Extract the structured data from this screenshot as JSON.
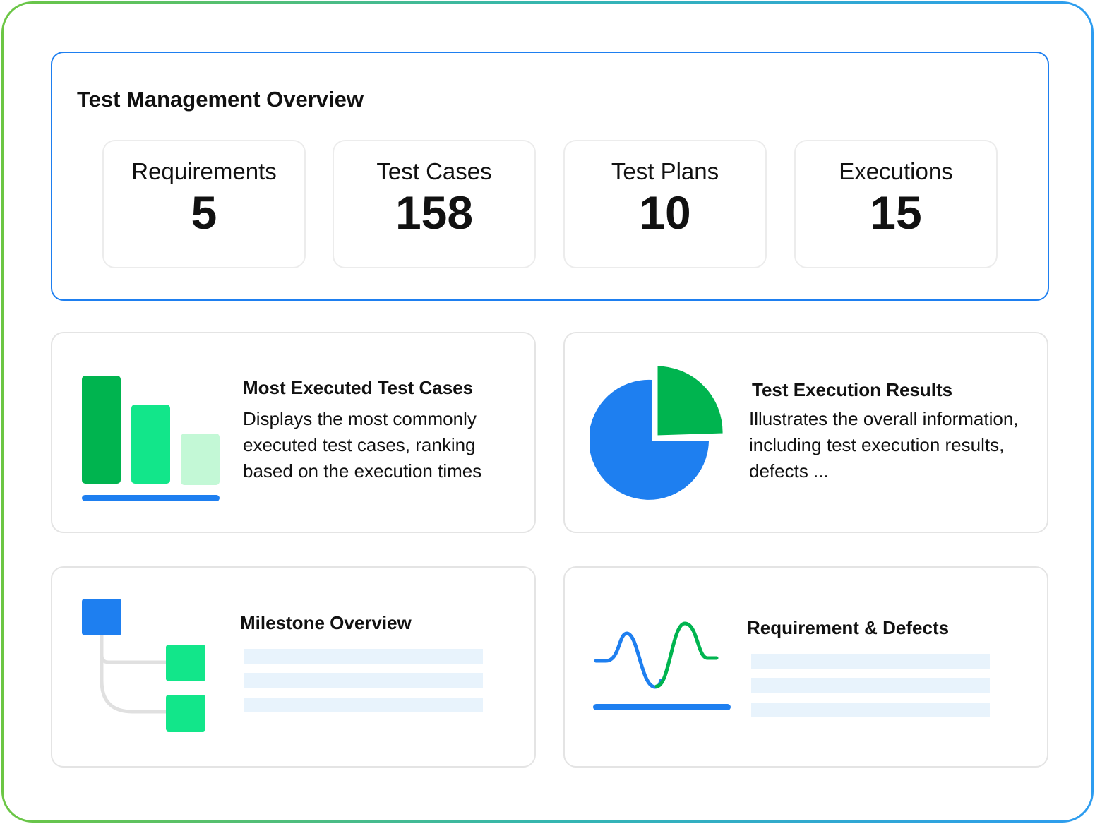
{
  "overview": {
    "title": "Test Management Overview",
    "stats": [
      {
        "label": "Requirements",
        "value": "5"
      },
      {
        "label": "Test Cases",
        "value": "158"
      },
      {
        "label": "Test Plans",
        "value": "10"
      },
      {
        "label": "Executions",
        "value": "15"
      }
    ]
  },
  "cards": {
    "most_executed": {
      "title": "Most Executed Test Cases",
      "description": "Displays the most commonly executed test cases, ranking based on the execution times",
      "icon": "bar-chart-icon"
    },
    "execution_results": {
      "title": "Test Execution Results",
      "description": "Illustrates the overall information, including test execution results, defects ...",
      "icon": "pie-chart-icon"
    },
    "milestone": {
      "title": "Milestone Overview",
      "icon": "tree-icon"
    },
    "requirement_defects": {
      "title": "Requirement & Defects",
      "icon": "wave-chart-icon"
    }
  },
  "colors": {
    "blue": "#1e7ff0",
    "green_dark": "#00b44f",
    "green_mid": "#12e68a",
    "green_light": "#c3f8d6",
    "placeholder": "#e8f3fc",
    "tree_line": "#e0e0e0"
  }
}
